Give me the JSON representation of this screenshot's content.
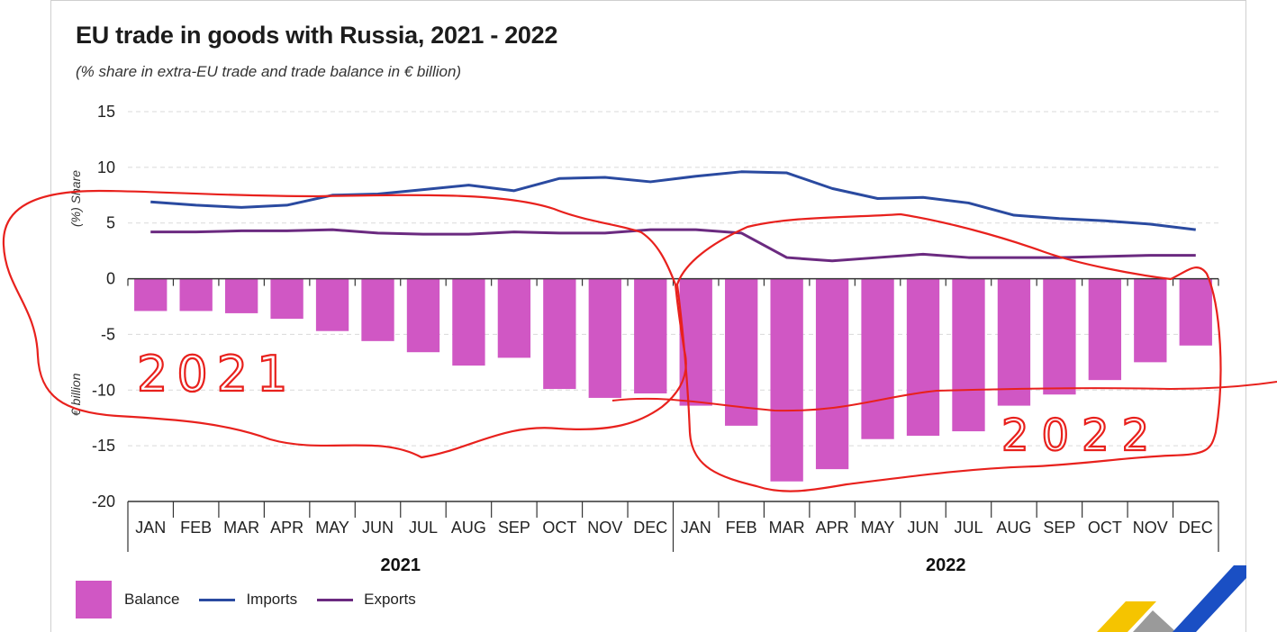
{
  "title": "EU trade in goods with Russia, 2021 - 2022",
  "subtitle": "(% share in extra-EU trade and trade balance in € billion)",
  "colors": {
    "balance": "#d057c4",
    "imports": "#2a4aa0",
    "exports": "#6b2a80",
    "annotation": "#e8211d",
    "grid": "#d9d9d9"
  },
  "chart_data": {
    "type": "bar",
    "title": "EU trade in goods with Russia, 2021 - 2022",
    "subtitle": "(% share in extra-EU trade and trade balance in € billion)",
    "ylabel_top": "(%) Share",
    "ylabel_bottom": "€ billion",
    "ylim": [
      -20,
      15
    ],
    "yticks": [
      15,
      10,
      5,
      0,
      -5,
      -10,
      -15,
      -20
    ],
    "grid": true,
    "legend_position": "bottom-left",
    "categories": [
      "JAN",
      "FEB",
      "MAR",
      "APR",
      "MAY",
      "JUN",
      "JUL",
      "AUG",
      "SEP",
      "OCT",
      "NOV",
      "DEC",
      "JAN",
      "FEB",
      "MAR",
      "APR",
      "MAY",
      "JUN",
      "JUL",
      "AUG",
      "SEP",
      "OCT",
      "NOV",
      "DEC"
    ],
    "year_groups": [
      {
        "label": "2021",
        "count": 12
      },
      {
        "label": "2022",
        "count": 12
      }
    ],
    "series": [
      {
        "name": "Balance",
        "type": "bar",
        "values": [
          -2.9,
          -2.9,
          -3.1,
          -3.6,
          -4.7,
          -5.6,
          -6.6,
          -7.8,
          -7.1,
          -9.9,
          -10.7,
          -10.3,
          -11.4,
          -13.2,
          -18.2,
          -17.1,
          -14.4,
          -14.1,
          -13.7,
          -11.4,
          -10.4,
          -9.1,
          -7.5,
          -6.0
        ]
      },
      {
        "name": "Imports",
        "type": "line",
        "values": [
          6.9,
          6.6,
          6.4,
          6.6,
          7.5,
          7.6,
          8.0,
          8.4,
          7.9,
          9.0,
          9.1,
          8.7,
          9.2,
          9.6,
          9.5,
          8.1,
          7.2,
          7.3,
          6.8,
          5.7,
          5.4,
          5.2,
          4.9,
          4.4
        ]
      },
      {
        "name": "Exports",
        "type": "line",
        "values": [
          4.2,
          4.2,
          4.3,
          4.3,
          4.4,
          4.1,
          4.0,
          4.0,
          4.2,
          4.1,
          4.1,
          4.4,
          4.4,
          4.1,
          1.9,
          1.6,
          1.9,
          2.2,
          1.9,
          1.9,
          1.9,
          2.0,
          2.1,
          2.1
        ]
      }
    ]
  },
  "annotations": {
    "label_2021": "2021",
    "label_2022": "2022"
  },
  "legend": {
    "balance": "Balance",
    "imports": "Imports",
    "exports": "Exports"
  },
  "logo_icon": "chevron-brand-logo-icon"
}
